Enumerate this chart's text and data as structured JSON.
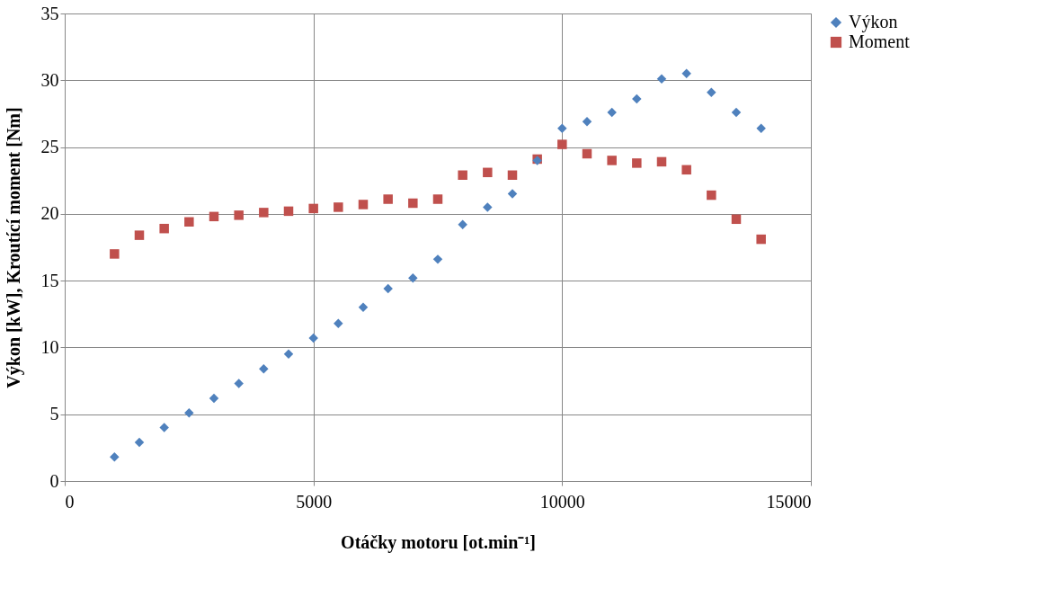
{
  "chart_data": {
    "type": "scatter",
    "xlabel": "Otáčky motoru [ot.min⁻¹]",
    "ylabel": "Výkon [kW],  Kroutící moment [Nm]",
    "x": [
      1000,
      1500,
      2000,
      2500,
      3000,
      3500,
      4000,
      4500,
      5000,
      5500,
      6000,
      6500,
      7000,
      7500,
      8000,
      8500,
      9000,
      9500,
      10000,
      10500,
      11000,
      11500,
      12000,
      12500,
      13000,
      13500,
      14000
    ],
    "series": [
      {
        "name": "Výkon",
        "color": "#4f81bd",
        "marker": "diamond",
        "values": [
          1.8,
          2.9,
          4.0,
          5.1,
          6.2,
          7.3,
          8.4,
          9.5,
          10.7,
          11.8,
          13.0,
          14.4,
          15.2,
          16.6,
          19.2,
          20.5,
          21.5,
          24.0,
          26.4,
          26.9,
          27.6,
          28.6,
          30.1,
          30.5,
          29.1,
          27.6,
          26.4
        ]
      },
      {
        "name": "Moment",
        "color": "#c0504d",
        "marker": "square",
        "values": [
          17.0,
          18.4,
          18.9,
          19.4,
          19.8,
          19.9,
          20.1,
          20.2,
          20.4,
          20.5,
          20.7,
          21.1,
          20.8,
          21.1,
          22.9,
          23.1,
          22.9,
          24.1,
          25.2,
          24.5,
          24.0,
          23.8,
          23.9,
          23.3,
          21.4,
          19.6,
          18.1
        ]
      }
    ],
    "xlim": [
      0,
      15000
    ],
    "xticks": [
      0,
      5000,
      10000,
      15000
    ],
    "ylim": [
      0,
      35
    ],
    "yticks": [
      0,
      5,
      10,
      15,
      20,
      25,
      30,
      35
    ],
    "grid": true,
    "legend": "right"
  }
}
